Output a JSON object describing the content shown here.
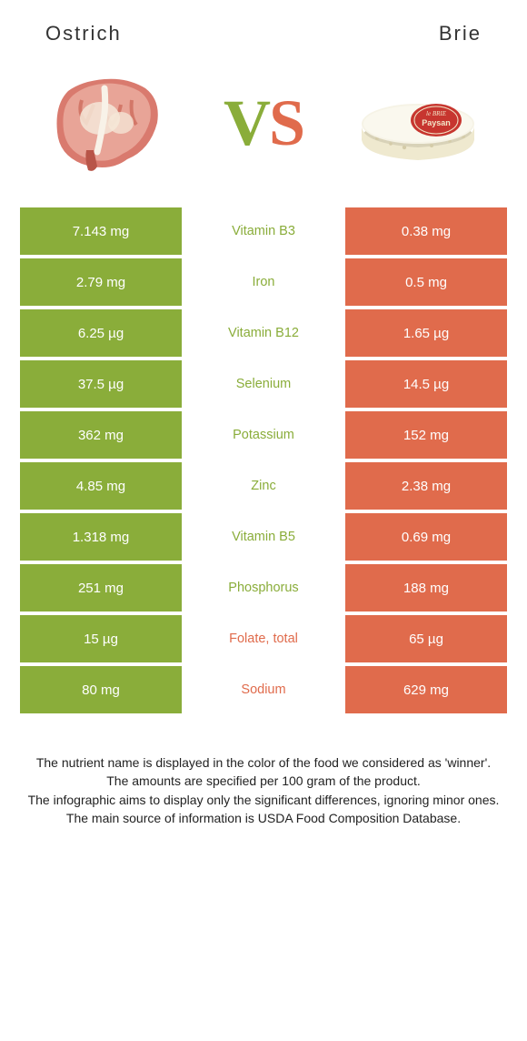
{
  "title_left": "Ostrich",
  "title_right": "Brie",
  "vs_v": "V",
  "vs_s": "S",
  "color_left": "#8aad3a",
  "color_right": "#e06b4c",
  "rows": [
    {
      "left": "7.143 mg",
      "label": "Vitamin B3",
      "right": "0.38 mg",
      "winner": "left"
    },
    {
      "left": "2.79 mg",
      "label": "Iron",
      "right": "0.5 mg",
      "winner": "left"
    },
    {
      "left": "6.25 µg",
      "label": "Vitamin B12",
      "right": "1.65 µg",
      "winner": "left"
    },
    {
      "left": "37.5 µg",
      "label": "Selenium",
      "right": "14.5 µg",
      "winner": "left"
    },
    {
      "left": "362 mg",
      "label": "Potassium",
      "right": "152 mg",
      "winner": "left"
    },
    {
      "left": "4.85 mg",
      "label": "Zinc",
      "right": "2.38 mg",
      "winner": "left"
    },
    {
      "left": "1.318 mg",
      "label": "Vitamin B5",
      "right": "0.69 mg",
      "winner": "left"
    },
    {
      "left": "251 mg",
      "label": "Phosphorus",
      "right": "188 mg",
      "winner": "left"
    },
    {
      "left": "15 µg",
      "label": "Folate, total",
      "right": "65 µg",
      "winner": "right"
    },
    {
      "left": "80 mg",
      "label": "Sodium",
      "right": "629 mg",
      "winner": "right"
    }
  ],
  "footer_lines": [
    "The nutrient name is displayed in the color of the food we considered as 'winner'.",
    "The amounts are specified per 100 gram of the product.",
    "The infographic aims to display only the significant differences, ignoring minor ones.",
    "The main source of information is USDA Food Composition Database."
  ]
}
